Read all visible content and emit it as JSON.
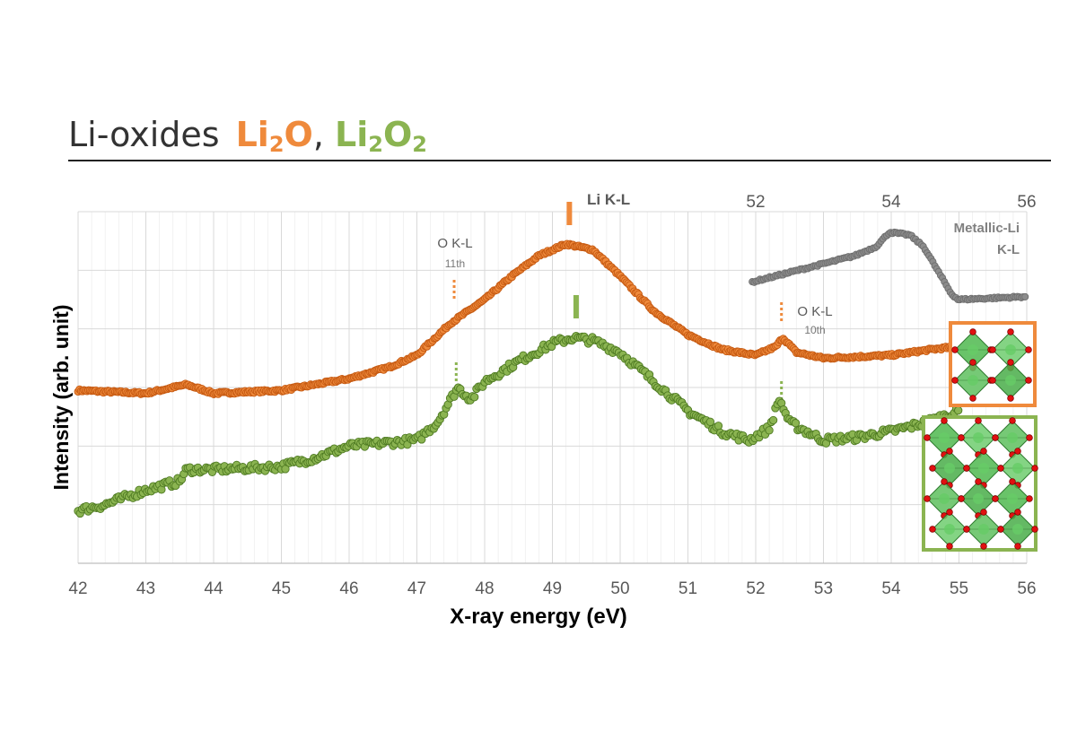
{
  "header": {
    "prefix": "Li-oxides",
    "s1_base": "Li",
    "s1_sub": "2",
    "s1_rest": "O",
    "sep": ",",
    "s2_base": "Li",
    "s2_sub": "2",
    "s2_rest": "O",
    "s2_sub2": "2"
  },
  "colors": {
    "li2o": "#ef8a3c",
    "li2o_edge": "#c65a12",
    "li2o2": "#8bb451",
    "li2o2_edge": "#4e7a22",
    "metallic": "#8c8c8c",
    "grid": "#e2e2e2",
    "axis_text": "#595959"
  },
  "chart_data": {
    "type": "scatter",
    "xlabel": "X-ray energy (eV)",
    "ylabel": "Intensity (arb. unit)",
    "xlim": [
      42,
      56
    ],
    "xticks": [
      42,
      43,
      44,
      45,
      46,
      47,
      48,
      49,
      50,
      51,
      52,
      53,
      54,
      55,
      56
    ],
    "grid": true,
    "y_ticks_labeled": false,
    "series": [
      {
        "name": "Li2O",
        "marker": "circle",
        "keypoints": [
          [
            42.0,
            0.59
          ],
          [
            43.0,
            0.58
          ],
          [
            43.6,
            0.61
          ],
          [
            44.0,
            0.58
          ],
          [
            45.0,
            0.59
          ],
          [
            46.0,
            0.63
          ],
          [
            46.6,
            0.67
          ],
          [
            47.0,
            0.71
          ],
          [
            47.5,
            0.82
          ],
          [
            48.0,
            0.9
          ],
          [
            48.4,
            0.98
          ],
          [
            48.8,
            1.05
          ],
          [
            49.2,
            1.09
          ],
          [
            49.6,
            1.07
          ],
          [
            50.0,
            0.98
          ],
          [
            50.5,
            0.86
          ],
          [
            51.0,
            0.78
          ],
          [
            51.5,
            0.73
          ],
          [
            52.0,
            0.71
          ],
          [
            52.3,
            0.74
          ],
          [
            52.4,
            0.77
          ],
          [
            52.6,
            0.72
          ],
          [
            53.0,
            0.7
          ],
          [
            54.0,
            0.71
          ],
          [
            54.6,
            0.73
          ],
          [
            55.0,
            0.74
          ]
        ]
      },
      {
        "name": "Li2O2",
        "marker": "circle",
        "keypoints": [
          [
            42.0,
            0.18
          ],
          [
            42.4,
            0.2
          ],
          [
            43.0,
            0.25
          ],
          [
            43.5,
            0.28
          ],
          [
            43.6,
            0.32
          ],
          [
            44.0,
            0.32
          ],
          [
            45.0,
            0.33
          ],
          [
            45.5,
            0.36
          ],
          [
            46.0,
            0.4
          ],
          [
            46.5,
            0.41
          ],
          [
            47.0,
            0.42
          ],
          [
            47.3,
            0.48
          ],
          [
            47.6,
            0.6
          ],
          [
            47.8,
            0.56
          ],
          [
            48.0,
            0.62
          ],
          [
            48.5,
            0.69
          ],
          [
            49.0,
            0.75
          ],
          [
            49.3,
            0.77
          ],
          [
            49.6,
            0.76
          ],
          [
            50.0,
            0.72
          ],
          [
            50.5,
            0.62
          ],
          [
            51.0,
            0.52
          ],
          [
            51.5,
            0.45
          ],
          [
            51.9,
            0.42
          ],
          [
            52.2,
            0.46
          ],
          [
            52.35,
            0.56
          ],
          [
            52.5,
            0.48
          ],
          [
            53.0,
            0.42
          ],
          [
            53.5,
            0.43
          ],
          [
            54.0,
            0.45
          ],
          [
            54.5,
            0.48
          ],
          [
            55.0,
            0.52
          ]
        ]
      },
      {
        "name": "Metallic-Li",
        "marker": "circle",
        "keypoints": [
          [
            52.0,
            0.96
          ],
          [
            53.0,
            1.02
          ],
          [
            53.5,
            1.05
          ],
          [
            53.8,
            1.08
          ],
          [
            54.0,
            1.13
          ],
          [
            54.3,
            1.12
          ],
          [
            54.5,
            1.08
          ],
          [
            54.7,
            1.0
          ],
          [
            54.9,
            0.92
          ],
          [
            55.0,
            0.9
          ],
          [
            56.0,
            0.91
          ]
        ]
      }
    ],
    "secondary_x_axis": {
      "label": "Metallic-Li K-L",
      "ticks": [
        52,
        54,
        56
      ],
      "range": [
        50.8,
        56
      ]
    },
    "annotations": {
      "li_kl": "Li K-L",
      "okl_11": "O K-L",
      "okl_11_order": "11th",
      "okl_10": "O K-L",
      "okl_10_order": "10th",
      "metallic_line1": "Metallic-Li",
      "metallic_line2": "K-L"
    },
    "markers": [
      {
        "series": "Li2O",
        "x": 49.25,
        "style": "bar"
      },
      {
        "series": "Li2O2",
        "x": 49.35,
        "style": "bar"
      },
      {
        "series": "Li2O",
        "x": 47.55,
        "style": "dotted"
      },
      {
        "series": "Li2O2",
        "x": 47.58,
        "style": "dotted"
      },
      {
        "series": "Li2O",
        "x": 52.38,
        "style": "dotted"
      },
      {
        "series": "Li2O2",
        "x": 52.38,
        "style": "dotted"
      }
    ],
    "insets": [
      {
        "name": "li2o-crystal-structure",
        "border": "#ef8a3c"
      },
      {
        "name": "li2o2-crystal-structure",
        "border": "#8bb451"
      }
    ]
  }
}
